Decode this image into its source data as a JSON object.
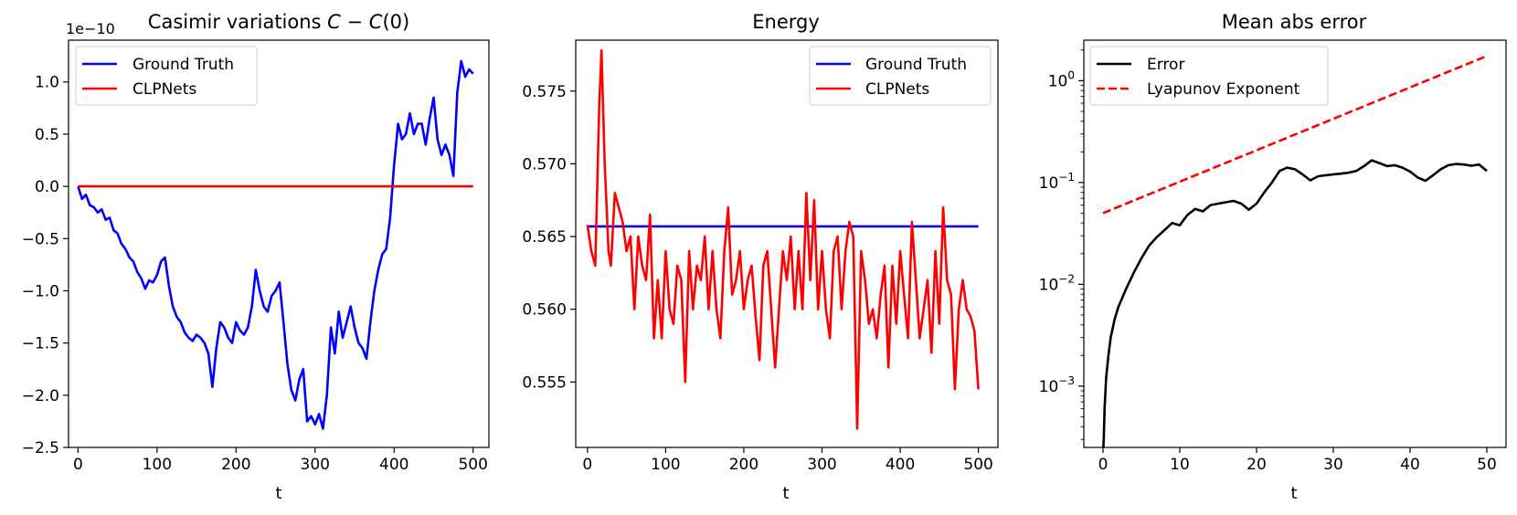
{
  "chart_data": [
    {
      "type": "line",
      "title": "Casimir variations C − C(0)",
      "title_parts": {
        "text": "Casimir variations ",
        "c1": "C",
        "minus": " − ",
        "c2": "C",
        "tail": "(0)"
      },
      "xlabel": "t",
      "ylabel": "",
      "y_scale_label": "1e−10",
      "xlim": [
        -12,
        520
      ],
      "ylim": [
        -2.5,
        1.4
      ],
      "xticks": [
        0,
        100,
        200,
        300,
        400,
        500
      ],
      "xtick_labels": [
        "0",
        "100",
        "200",
        "300",
        "400",
        "500"
      ],
      "yticks": [
        -2.5,
        -2.0,
        -1.5,
        -1.0,
        -0.5,
        0.0,
        0.5,
        1.0
      ],
      "ytick_labels": [
        "−2.5",
        "−2.0",
        "−1.5",
        "−1.0",
        "−0.5",
        "0.0",
        "0.5",
        "1.0"
      ],
      "legend_position": "upper-left",
      "series": [
        {
          "name": "Ground Truth",
          "color": "#0000ff",
          "style": "solid",
          "x": [
            0,
            5,
            10,
            15,
            20,
            25,
            30,
            35,
            40,
            45,
            50,
            55,
            60,
            65,
            70,
            75,
            80,
            85,
            90,
            95,
            100,
            105,
            110,
            115,
            120,
            125,
            130,
            135,
            140,
            145,
            150,
            155,
            160,
            165,
            170,
            175,
            180,
            185,
            190,
            195,
            200,
            205,
            210,
            215,
            220,
            225,
            230,
            235,
            240,
            245,
            250,
            255,
            260,
            265,
            270,
            275,
            280,
            285,
            290,
            295,
            300,
            305,
            310,
            315,
            320,
            325,
            330,
            335,
            340,
            345,
            350,
            355,
            360,
            365,
            370,
            375,
            380,
            385,
            390,
            395,
            400,
            405,
            410,
            415,
            420,
            425,
            430,
            435,
            440,
            445,
            450,
            455,
            460,
            465,
            470,
            475,
            480,
            485,
            490,
            495,
            500
          ],
          "values": [
            0.0,
            -0.12,
            -0.08,
            -0.18,
            -0.2,
            -0.25,
            -0.22,
            -0.32,
            -0.3,
            -0.42,
            -0.45,
            -0.55,
            -0.6,
            -0.68,
            -0.72,
            -0.82,
            -0.88,
            -0.98,
            -0.9,
            -0.92,
            -0.85,
            -0.72,
            -0.68,
            -0.95,
            -1.15,
            -1.25,
            -1.3,
            -1.4,
            -1.45,
            -1.48,
            -1.42,
            -1.45,
            -1.5,
            -1.6,
            -1.92,
            -1.55,
            -1.3,
            -1.35,
            -1.45,
            -1.5,
            -1.3,
            -1.38,
            -1.42,
            -1.35,
            -1.15,
            -0.8,
            -1.0,
            -1.15,
            -1.2,
            -1.05,
            -1.0,
            -0.92,
            -1.3,
            -1.7,
            -1.95,
            -2.05,
            -1.85,
            -1.75,
            -2.25,
            -2.2,
            -2.28,
            -2.18,
            -2.32,
            -2.0,
            -1.35,
            -1.6,
            -1.2,
            -1.45,
            -1.3,
            -1.15,
            -1.35,
            -1.5,
            -1.55,
            -1.65,
            -1.3,
            -1.0,
            -0.8,
            -0.65,
            -0.6,
            -0.3,
            0.2,
            0.6,
            0.45,
            0.5,
            0.7,
            0.5,
            0.6,
            0.6,
            0.4,
            0.65,
            0.85,
            0.45,
            0.3,
            0.4,
            0.3,
            0.1,
            0.9,
            1.2,
            1.05,
            1.12,
            1.08
          ]
        },
        {
          "name": "CLPNets",
          "color": "#ff0000",
          "style": "solid",
          "x": [
            0,
            500
          ],
          "values": [
            0.0,
            0.0
          ]
        }
      ]
    },
    {
      "type": "line",
      "title": "Energy",
      "xlabel": "t",
      "ylabel": "",
      "xlim": [
        -15,
        525
      ],
      "ylim": [
        0.5505,
        0.5785
      ],
      "xticks": [
        0,
        100,
        200,
        300,
        400,
        500
      ],
      "xtick_labels": [
        "0",
        "100",
        "200",
        "300",
        "400",
        "500"
      ],
      "yticks": [
        0.555,
        0.56,
        0.565,
        0.57,
        0.575
      ],
      "ytick_labels": [
        "0.555",
        "0.560",
        "0.565",
        "0.570",
        "0.575"
      ],
      "legend_position": "upper-right",
      "series": [
        {
          "name": "Ground Truth",
          "color": "#0000ff",
          "style": "solid",
          "x": [
            0,
            500
          ],
          "values": [
            0.5657,
            0.5657
          ]
        },
        {
          "name": "CLPNets",
          "color": "#ff0000",
          "style": "solid",
          "x": [
            0,
            5,
            10,
            15,
            18,
            22,
            27,
            30,
            35,
            40,
            45,
            50,
            55,
            60,
            65,
            70,
            75,
            80,
            85,
            90,
            95,
            100,
            105,
            110,
            115,
            120,
            125,
            130,
            135,
            140,
            145,
            150,
            155,
            160,
            165,
            170,
            175,
            180,
            185,
            190,
            195,
            200,
            205,
            210,
            215,
            220,
            225,
            230,
            235,
            240,
            245,
            250,
            255,
            260,
            265,
            270,
            275,
            280,
            285,
            290,
            295,
            300,
            305,
            310,
            315,
            320,
            325,
            330,
            335,
            340,
            345,
            350,
            355,
            360,
            365,
            370,
            375,
            380,
            385,
            390,
            395,
            400,
            405,
            410,
            415,
            420,
            425,
            430,
            435,
            440,
            445,
            450,
            455,
            460,
            465,
            470,
            475,
            480,
            485,
            490,
            495,
            500
          ],
          "values": [
            0.5658,
            0.564,
            0.563,
            0.574,
            0.5778,
            0.57,
            0.564,
            0.563,
            0.568,
            0.567,
            0.566,
            0.564,
            0.565,
            0.56,
            0.565,
            0.563,
            0.562,
            0.5665,
            0.558,
            0.562,
            0.558,
            0.564,
            0.56,
            0.559,
            0.563,
            0.562,
            0.555,
            0.564,
            0.56,
            0.563,
            0.562,
            0.565,
            0.56,
            0.564,
            0.56,
            0.558,
            0.564,
            0.567,
            0.561,
            0.562,
            0.564,
            0.56,
            0.562,
            0.563,
            0.5595,
            0.5565,
            0.563,
            0.564,
            0.56,
            0.556,
            0.56,
            0.564,
            0.562,
            0.565,
            0.56,
            0.564,
            0.56,
            0.568,
            0.562,
            0.5675,
            0.56,
            0.564,
            0.56,
            0.558,
            0.564,
            0.565,
            0.56,
            0.564,
            0.566,
            0.565,
            0.5518,
            0.564,
            0.562,
            0.559,
            0.56,
            0.558,
            0.561,
            0.563,
            0.556,
            0.563,
            0.559,
            0.564,
            0.561,
            0.558,
            0.566,
            0.562,
            0.558,
            0.56,
            0.562,
            0.557,
            0.564,
            0.559,
            0.567,
            0.562,
            0.561,
            0.5545,
            0.56,
            0.562,
            0.56,
            0.5595,
            0.5585,
            0.5545
          ]
        }
      ]
    },
    {
      "type": "line",
      "title": "Mean abs error",
      "xlabel": "t",
      "ylabel": "",
      "yscale": "log",
      "xlim": [
        -2.5,
        52.5
      ],
      "ylim": [
        0.00025,
        2.5
      ],
      "xticks": [
        0,
        10,
        20,
        30,
        40,
        50
      ],
      "xtick_labels": [
        "0",
        "10",
        "20",
        "30",
        "40",
        "50"
      ],
      "yticks": [
        0.001,
        0.01,
        0.1,
        1
      ],
      "ytick_labels": [
        {
          "base": "10",
          "exp": "−3"
        },
        {
          "base": "10",
          "exp": "−2"
        },
        {
          "base": "10",
          "exp": "−1"
        },
        {
          "base": "10",
          "exp": "0"
        }
      ],
      "legend_position": "upper-left",
      "series": [
        {
          "name": "Error",
          "color": "#000000",
          "style": "solid",
          "x": [
            0.05,
            0.1,
            0.2,
            0.4,
            0.7,
            1,
            1.5,
            2,
            3,
            4,
            5,
            6,
            7,
            8,
            9,
            10,
            11,
            12,
            13,
            14,
            15,
            16,
            17,
            18,
            19,
            20,
            21,
            22,
            23,
            24,
            25,
            26,
            27,
            28,
            29,
            30,
            31,
            32,
            33,
            34,
            35,
            36,
            37,
            38,
            39,
            40,
            41,
            42,
            43,
            44,
            45,
            46,
            47,
            48,
            49,
            50
          ],
          "values": [
            0.00025,
            0.0003,
            0.0006,
            0.0012,
            0.002,
            0.003,
            0.0045,
            0.006,
            0.009,
            0.013,
            0.018,
            0.024,
            0.029,
            0.034,
            0.04,
            0.038,
            0.048,
            0.055,
            0.052,
            0.06,
            0.062,
            0.064,
            0.066,
            0.062,
            0.054,
            0.062,
            0.08,
            0.1,
            0.13,
            0.14,
            0.135,
            0.12,
            0.105,
            0.115,
            0.118,
            0.12,
            0.122,
            0.125,
            0.13,
            0.145,
            0.165,
            0.155,
            0.145,
            0.148,
            0.14,
            0.128,
            0.112,
            0.104,
            0.118,
            0.135,
            0.148,
            0.152,
            0.15,
            0.146,
            0.15,
            0.13
          ]
        },
        {
          "name": "Lyapunov Exponent",
          "color": "#ff0000",
          "style": "dashed",
          "x": [
            0,
            50
          ],
          "values": [
            0.05,
            1.75
          ]
        }
      ]
    }
  ]
}
